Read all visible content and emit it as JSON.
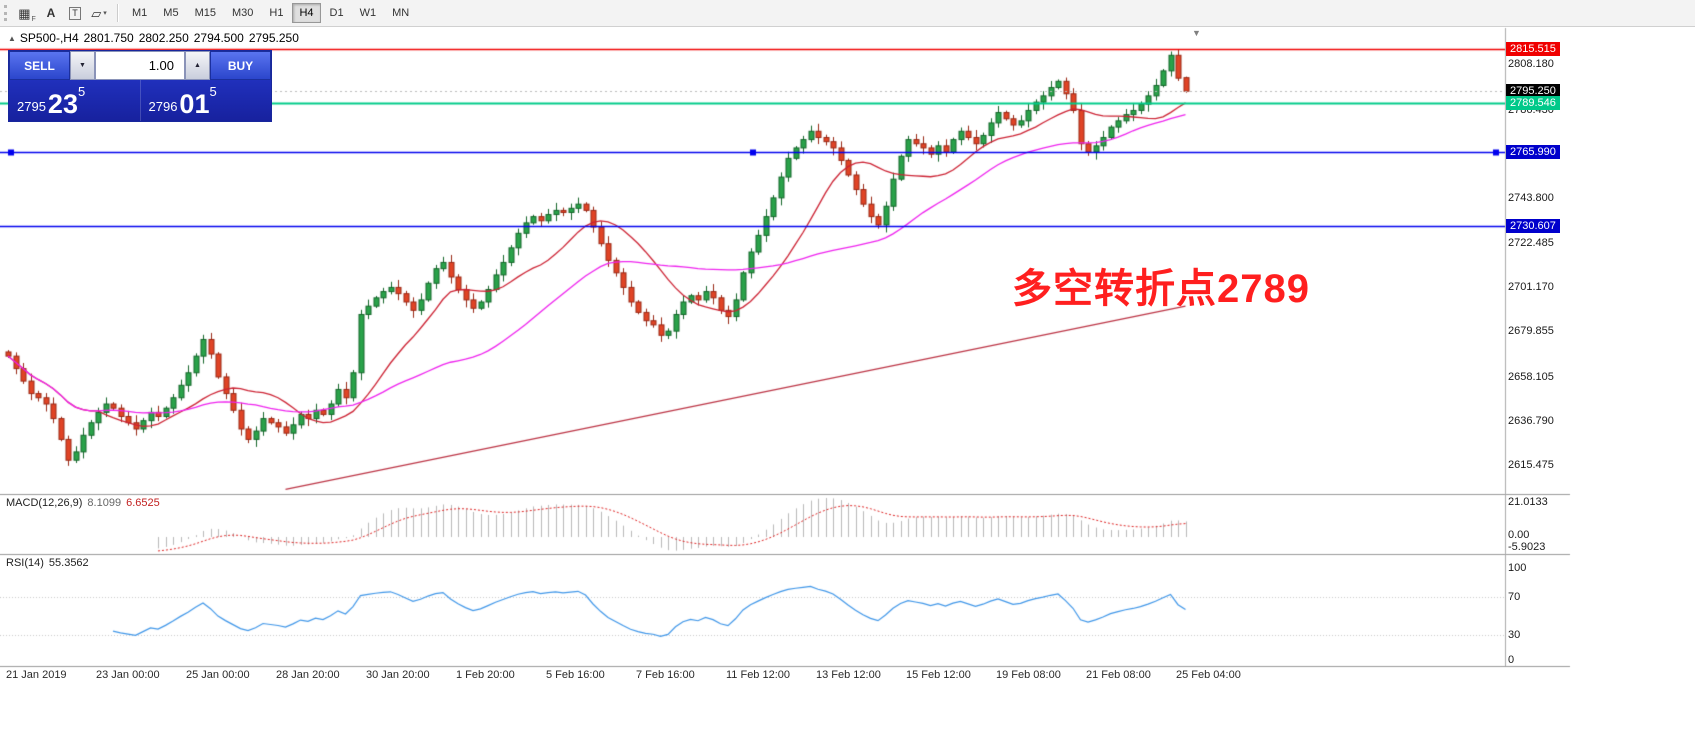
{
  "toolbar": {
    "icons": [
      {
        "name": "grid-cursor-icon",
        "glyph": "▦",
        "sub": "F"
      },
      {
        "name": "text-label-icon",
        "glyph": "A"
      },
      {
        "name": "text-box-icon",
        "glyph": "T"
      },
      {
        "name": "shapes-dropdown-icon",
        "glyph": "▱",
        "arrow": "▾"
      }
    ],
    "timeframes": [
      "M1",
      "M5",
      "M15",
      "M30",
      "H1",
      "H4",
      "D1",
      "W1",
      "MN"
    ],
    "active_timeframe": "H4"
  },
  "chart": {
    "title": {
      "marker": "▲",
      "symbol": "SP500-,H4",
      "open": "2801.750",
      "high": "2802.250",
      "low": "2794.500",
      "close": "2795.250"
    },
    "shift_marker": "▼",
    "price_tags": [
      {
        "price": 2815.515,
        "label": "2815.515",
        "bg": "#f00000",
        "fg": "#ffffff"
      },
      {
        "price": 2795.25,
        "label": "2795.250",
        "bg": "#000000",
        "fg": "#ffffff"
      },
      {
        "price": 2789.546,
        "label": "2789.546",
        "bg": "#00c98a",
        "fg": "#ffffff"
      },
      {
        "price": 2765.99,
        "label": "2765.990",
        "bg": "#0000cc",
        "fg": "#ffffff"
      },
      {
        "price": 2730.607,
        "label": "2730.607",
        "bg": "#0000cc",
        "fg": "#ffffff"
      }
    ],
    "grid_labels": [
      {
        "price": 2808.18,
        "label": "2808.180"
      },
      {
        "price": 2786.43,
        "label": "2786.430"
      },
      {
        "price": 2743.8,
        "label": "2743.800"
      },
      {
        "price": 2722.485,
        "label": "2722.485"
      },
      {
        "price": 2701.17,
        "label": "2701.170"
      },
      {
        "price": 2679.855,
        "label": "2679.855"
      },
      {
        "price": 2658.105,
        "label": "2658.105"
      },
      {
        "price": 2636.79,
        "label": "2636.790"
      },
      {
        "price": 2615.475,
        "label": "2615.475"
      }
    ],
    "hlines": [
      {
        "price": 2815.515,
        "color": "#f00000",
        "width": 1.6
      },
      {
        "price": 2789.546,
        "color": "#00cc8a",
        "width": 2
      },
      {
        "price": 2765.99,
        "color": "#0000ee",
        "width": 1.6,
        "handles": true
      },
      {
        "price": 2730.607,
        "color": "#0000ee",
        "width": 1.6
      }
    ],
    "bid_line": {
      "price": 2795.25
    },
    "time_labels": [
      "21 Jan 2019",
      "23 Jan 00:00",
      "25 Jan 00:00",
      "28 Jan 20:00",
      "30 Jan 20:00",
      "1 Feb 20:00",
      "5 Feb 16:00",
      "7 Feb 16:00",
      "11 Feb 12:00",
      "13 Feb 12:00",
      "15 Feb 12:00",
      "19 Feb 08:00",
      "21 Feb 08:00",
      "25 Feb 04:00"
    ]
  },
  "trade_panel": {
    "sell_label": "SELL",
    "buy_label": "BUY",
    "volume": "1.00",
    "down_glyph": "▼",
    "up_glyph": "▲",
    "sell_price": {
      "prefix": "2795",
      "main": "23",
      "sup": "5"
    },
    "buy_price": {
      "prefix": "2796",
      "main": "01",
      "sup": "5"
    }
  },
  "annotation": {
    "text": "多空转折点2789",
    "color": "#ff1f1f"
  },
  "macd": {
    "name": "MACD(12,26,9)",
    "value1": "8.1099",
    "value2": "6.6525",
    "axis_labels": [
      "21.0133",
      "0.00",
      "-5.9023"
    ]
  },
  "rsi": {
    "name": "RSI(14)",
    "value": "55.3562",
    "axis_labels": [
      100,
      70,
      30,
      0
    ],
    "levels": [
      70,
      30
    ]
  },
  "colors": {
    "up_fill": "#2aa24a",
    "up_stroke": "#14662a",
    "down_fill": "#e04426",
    "down_stroke": "#992815",
    "ma_fast": "#cc2233",
    "ma_slow": "#ee22ee",
    "trend": "#bb3344",
    "macd_hist": "#b8b8b8",
    "macd_signal": "#dd2222",
    "rsi_line": "#3f96e8",
    "hline_red": "#f00000",
    "hline_green": "#00cc8a",
    "hline_blue": "#0000ee"
  },
  "chart_data": {
    "type": "candlestick",
    "symbol": "SP500-",
    "timeframe": "H4",
    "first_open": 2670,
    "closes": [
      2668,
      2662,
      2656,
      2650,
      2648,
      2645,
      2638,
      2628,
      2618,
      2622,
      2630,
      2636,
      2641,
      2645,
      2643,
      2639,
      2636,
      2633,
      2637,
      2641,
      2639,
      2643,
      2648,
      2654,
      2660,
      2668,
      2676,
      2669,
      2658,
      2650,
      2642,
      2633,
      2628,
      2632,
      2638,
      2636,
      2634,
      2631,
      2635,
      2640,
      2638,
      2642,
      2640,
      2645,
      2652,
      2648,
      2660,
      2688,
      2692,
      2696,
      2699,
      2701,
      2698,
      2694,
      2690,
      2695,
      2703,
      2710,
      2713,
      2706,
      2700,
      2695,
      2691,
      2694,
      2700,
      2707,
      2713,
      2720,
      2727,
      2732,
      2735,
      2733,
      2736,
      2738,
      2737,
      2739,
      2741,
      2738,
      2730,
      2722,
      2714,
      2708,
      2701,
      2694,
      2689,
      2685,
      2683,
      2678,
      2680,
      2688,
      2694,
      2697,
      2695,
      2699,
      2696,
      2690,
      2687,
      2695,
      2708,
      2718,
      2726,
      2735,
      2744,
      2754,
      2763,
      2768,
      2772,
      2776,
      2773,
      2771,
      2768,
      2762,
      2755,
      2748,
      2741,
      2735,
      2731,
      2740,
      2753,
      2764,
      2772,
      2770,
      2768,
      2765,
      2769,
      2766,
      2772,
      2776,
      2773,
      2770,
      2774,
      2780,
      2785,
      2782,
      2779,
      2781,
      2786,
      2790,
      2793,
      2797,
      2800,
      2794,
      2786,
      2770,
      2766,
      2769,
      2773,
      2778,
      2781,
      2784,
      2786,
      2789,
      2793,
      2798,
      2805,
      2812.5,
      2801.5,
      2795.25
    ],
    "last_candle": {
      "open": 2801.75,
      "high": 2802.25,
      "low": 2794.5,
      "close": 2795.25
    },
    "price_axis": {
      "top": 2825.6,
      "bottom": 2602.3
    },
    "trendline": {
      "i1": 37,
      "p1": 2604,
      "i2": 157,
      "p2": 2692
    },
    "ma_fast_period": 13,
    "ma_slow_period": 34
  }
}
